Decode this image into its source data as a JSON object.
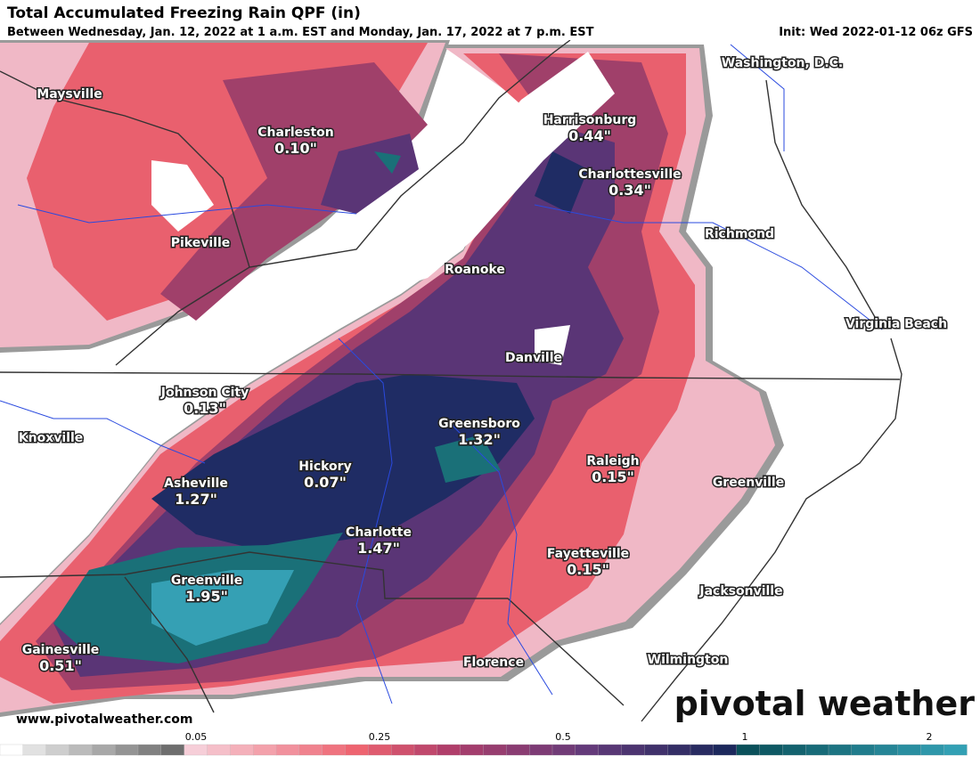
{
  "header": {
    "title": "Total Accumulated Freezing Rain QPF (in)",
    "subtitle": "Between Wednesday, Jan. 12, 2022 at 1 a.m. EST and Monday, Jan. 17, 2022 at 7 p.m. EST",
    "init": "Init: Wed 2022-01-12 06z GFS"
  },
  "cities": [
    {
      "name": "Maysville"
    },
    {
      "name": "Charleston",
      "value": "0.10\""
    },
    {
      "name": "Washington, D.C."
    },
    {
      "name": "Harrisonburg",
      "value": "0.44\""
    },
    {
      "name": "Charlottesville",
      "value": "0.34\""
    },
    {
      "name": "Pikeville"
    },
    {
      "name": "Richmond"
    },
    {
      "name": "Roanoke"
    },
    {
      "name": "Virginia Beach"
    },
    {
      "name": "Danville"
    },
    {
      "name": "Johnson City",
      "value": "0.13\""
    },
    {
      "name": "Knoxville"
    },
    {
      "name": "Greensboro",
      "value": "1.32\""
    },
    {
      "name": "Raleigh",
      "value": "0.15\""
    },
    {
      "name": "Hickory",
      "value": "0.07\""
    },
    {
      "name": "Asheville",
      "value": "1.27\""
    },
    {
      "name": "Greenville"
    },
    {
      "name": "Charlotte",
      "value": "1.47\""
    },
    {
      "name": "Fayetteville",
      "value": "0.15\""
    },
    {
      "name": "Jacksonville"
    },
    {
      "name": "Greenville",
      "value": "1.95\""
    },
    {
      "name": "Gainesville",
      "value": "0.51\""
    },
    {
      "name": "Florence"
    },
    {
      "name": "Wilmington"
    }
  ],
  "legend": {
    "ticks": [
      "0.05",
      "0.25",
      "0.5",
      "1",
      "2"
    ]
  },
  "footer": {
    "url": "www.pivotalweather.com",
    "brand": "pivotal weather"
  }
}
